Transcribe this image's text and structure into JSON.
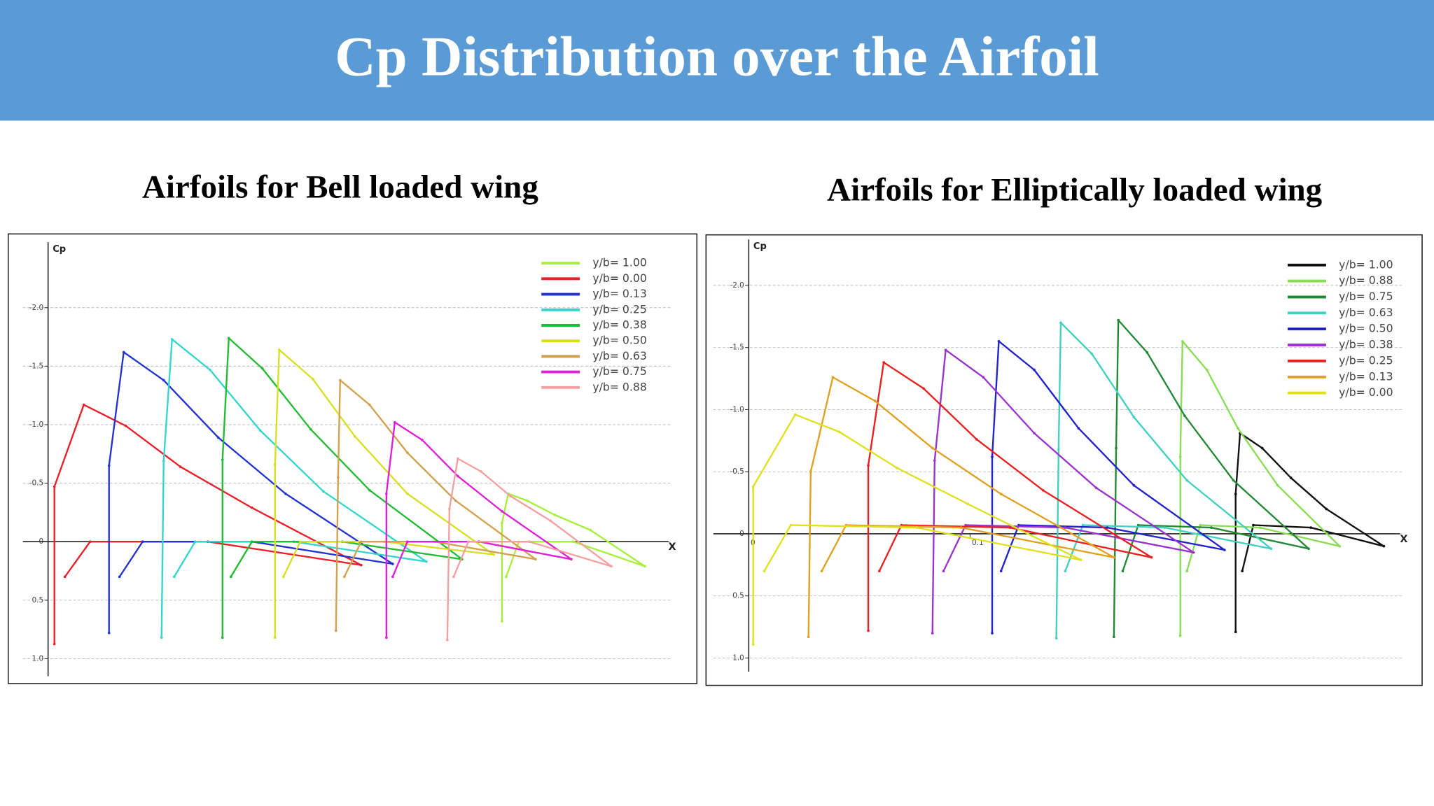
{
  "title": "Cp Distribution over the Airfoil",
  "chart_data": [
    {
      "type": "line",
      "title": "Airfoils for Bell loaded wing",
      "xlabel": "X",
      "ylabel": "Cp",
      "xlim": [
        -0.012,
        0.297
      ],
      "ylim": [
        1.15,
        -2.56
      ],
      "yticks": [
        {
          "value": -2,
          "label": "-2.0"
        },
        -1.5,
        {
          "value": -1,
          "label": "-1.0"
        },
        -0.5,
        0,
        0.5,
        {
          "value": 1,
          "label": "1.0"
        }
      ],
      "grid": true,
      "legend": "upper right",
      "series": [
        {
          "name": "y/b= 1.00",
          "color": "#a6f03a",
          "x": [
            0.216,
            0.216,
            0.219,
            0.228,
            0.241,
            0.258,
            0.284,
            0.25,
            0.224,
            0.218
          ],
          "values": [
            0.68,
            -0.16,
            -0.41,
            -0.35,
            -0.23,
            -0.1,
            0.21,
            0,
            0,
            0.3
          ]
        },
        {
          "name": "y/b= 0.00",
          "color": "#e8202a",
          "x": [
            0.003,
            0.003,
            0.017,
            0.037,
            0.063,
            0.097,
            0.149,
            0.076,
            0.02,
            0.008
          ],
          "values": [
            0.875,
            -0.47,
            -1.17,
            -0.99,
            -0.64,
            -0.29,
            0.2,
            0,
            0,
            0.3
          ]
        },
        {
          "name": "y/b= 0.13",
          "color": "#2233d0",
          "x": [
            0.029,
            0.029,
            0.036,
            0.055,
            0.081,
            0.113,
            0.164,
            0.097,
            0.045,
            0.034
          ],
          "values": [
            0.78,
            -0.65,
            -1.62,
            -1.38,
            -0.89,
            -0.41,
            0.19,
            0,
            0,
            0.3
          ]
        },
        {
          "name": "y/b= 0.25",
          "color": "#33d6cc",
          "x": [
            0.054,
            0.055,
            0.059,
            0.077,
            0.101,
            0.131,
            0.18,
            0.117,
            0.07,
            0.06
          ],
          "values": [
            0.82,
            -0.69,
            -1.73,
            -1.47,
            -0.95,
            -0.43,
            0.17,
            0,
            0,
            0.3
          ]
        },
        {
          "name": "y/b= 0.38",
          "color": "#22bb33",
          "x": [
            0.083,
            0.083,
            0.086,
            0.102,
            0.125,
            0.153,
            0.197,
            0.14,
            0.097,
            0.087
          ],
          "values": [
            0.82,
            -0.7,
            -1.74,
            -1.48,
            -0.96,
            -0.44,
            0.15,
            0,
            0,
            0.3
          ]
        },
        {
          "name": "y/b= 0.50",
          "color": "#d6e020",
          "x": [
            0.108,
            0.108,
            0.11,
            0.126,
            0.146,
            0.171,
            0.212,
            0.16,
            0.12,
            0.112
          ],
          "values": [
            0.82,
            -0.66,
            -1.64,
            -1.39,
            -0.9,
            -0.41,
            0.11,
            0,
            0,
            0.3
          ]
        },
        {
          "name": "y/b= 0.63",
          "color": "#d4a050",
          "x": [
            0.137,
            0.138,
            0.139,
            0.153,
            0.171,
            0.194,
            0.232,
            0.184,
            0.149,
            0.141
          ],
          "values": [
            0.76,
            -0.55,
            -1.38,
            -1.17,
            -0.76,
            -0.35,
            0.15,
            0,
            0,
            0.3
          ]
        },
        {
          "name": "y/b= 0.75",
          "color": "#e020d8",
          "x": [
            0.161,
            0.161,
            0.165,
            0.178,
            0.195,
            0.216,
            0.249,
            0.205,
            0.171,
            0.164
          ],
          "values": [
            0.82,
            -0.41,
            -1.02,
            -0.87,
            -0.56,
            -0.26,
            0.15,
            0,
            0,
            0.3
          ]
        },
        {
          "name": "y/b= 0.88",
          "color": "#f4a0a0",
          "x": [
            0.19,
            0.191,
            0.195,
            0.206,
            0.22,
            0.239,
            0.268,
            0.229,
            0.2,
            0.193
          ],
          "values": [
            0.84,
            -0.28,
            -0.71,
            -0.6,
            -0.39,
            -0.18,
            0.21,
            0,
            0,
            0.3
          ]
        }
      ]
    },
    {
      "type": "line",
      "title": "Airfoils for Elliptically loaded wing",
      "xlabel": "X",
      "ylabel": "Cp",
      "xlim": [
        -0.016,
        0.296
      ],
      "ylim": [
        1.11,
        -2.37
      ],
      "xticks": [
        0,
        0.1
      ],
      "yticks": [
        {
          "value": -2,
          "label": "-2.0"
        },
        -1.5,
        {
          "value": -1,
          "label": "-1.0"
        },
        -0.5,
        0,
        0.5,
        {
          "value": 1,
          "label": "1.0"
        }
      ],
      "grid": true,
      "legend": "upper right",
      "series": [
        {
          "name": "y/b= 1.00",
          "color": "#111111",
          "x": [
            0.22,
            0.22,
            0.222,
            0.232,
            0.245,
            0.261,
            0.287,
            0.254,
            0.228,
            0.223
          ],
          "values": [
            0.79,
            -0.32,
            -0.81,
            -0.69,
            -0.45,
            -0.2,
            0.1,
            -0.05,
            -0.07,
            0.3
          ]
        },
        {
          "name": "y/b= 0.88",
          "color": "#88dd55",
          "x": [
            0.195,
            0.195,
            0.196,
            0.207,
            0.221,
            0.239,
            0.267,
            0.231,
            0.204,
            0.198
          ],
          "values": [
            0.82,
            -0.62,
            -1.55,
            -1.32,
            -0.85,
            -0.39,
            0.1,
            -0.05,
            -0.07,
            0.3
          ]
        },
        {
          "name": "y/b= 0.75",
          "color": "#228833",
          "x": [
            0.165,
            0.166,
            0.167,
            0.18,
            0.197,
            0.219,
            0.253,
            0.209,
            0.176,
            0.169
          ],
          "values": [
            0.83,
            -0.69,
            -1.72,
            -1.46,
            -0.95,
            -0.43,
            0.12,
            -0.05,
            -0.07,
            0.3
          ]
        },
        {
          "name": "y/b= 0.63",
          "color": "#40d0c0",
          "x": [
            0.139,
            0.14,
            0.141,
            0.155,
            0.174,
            0.198,
            0.236,
            0.188,
            0.151,
            0.143
          ],
          "values": [
            0.84,
            -0.68,
            -1.7,
            -1.45,
            -0.94,
            -0.43,
            0.12,
            -0.05,
            -0.07,
            0.3
          ]
        },
        {
          "name": "y/b= 0.50",
          "color": "#2222cc",
          "x": [
            0.11,
            0.11,
            0.113,
            0.129,
            0.149,
            0.174,
            0.215,
            0.162,
            0.122,
            0.114
          ],
          "values": [
            0.8,
            -0.62,
            -1.55,
            -1.32,
            -0.85,
            -0.39,
            0.13,
            -0.05,
            -0.07,
            0.3
          ]
        },
        {
          "name": "y/b= 0.38",
          "color": "#9933cc",
          "x": [
            0.083,
            0.084,
            0.089,
            0.106,
            0.129,
            0.157,
            0.201,
            0.143,
            0.098,
            0.088
          ],
          "values": [
            0.8,
            -0.59,
            -1.48,
            -1.26,
            -0.81,
            -0.37,
            0.15,
            -0.05,
            -0.07,
            0.3
          ]
        },
        {
          "name": "y/b= 0.25",
          "color": "#e82020",
          "x": [
            0.054,
            0.054,
            0.061,
            0.079,
            0.103,
            0.133,
            0.182,
            0.118,
            0.069,
            0.059
          ],
          "values": [
            0.78,
            -0.55,
            -1.38,
            -1.17,
            -0.76,
            -0.35,
            0.19,
            -0.05,
            -0.07,
            0.3
          ]
        },
        {
          "name": "y/b= 0.13",
          "color": "#e0a020",
          "x": [
            0.027,
            0.028,
            0.038,
            0.057,
            0.083,
            0.114,
            0.165,
            0.096,
            0.044,
            0.033
          ],
          "values": [
            0.83,
            -0.5,
            -1.26,
            -1.07,
            -0.69,
            -0.32,
            0.19,
            -0.05,
            -0.07,
            0.3
          ]
        },
        {
          "name": "y/b= 0.00",
          "color": "#e0e020",
          "x": [
            0.002,
            0.002,
            0.021,
            0.041,
            0.067,
            0.099,
            0.15,
            0.076,
            0.019,
            0.007
          ],
          "values": [
            0.89,
            -0.38,
            -0.96,
            -0.82,
            -0.53,
            -0.24,
            0.21,
            -0.05,
            -0.07,
            0.3
          ]
        }
      ]
    }
  ]
}
